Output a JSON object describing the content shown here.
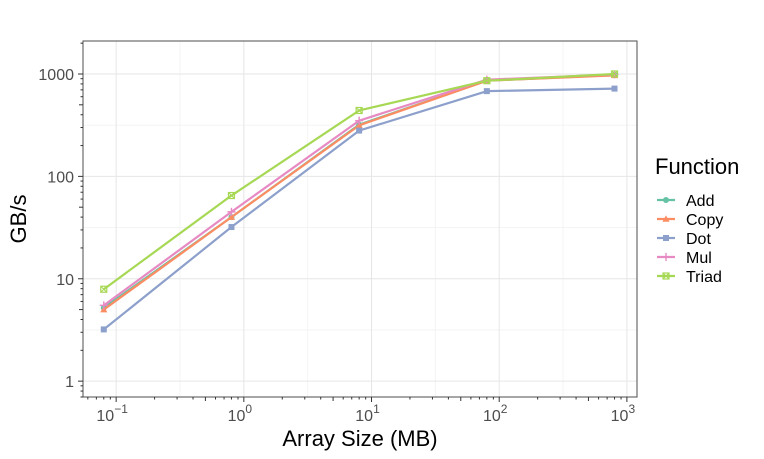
{
  "chart_data": {
    "type": "line",
    "xlabel": "Array Size (MB)",
    "ylabel": "GB/s",
    "x_scale": "log10",
    "y_scale": "log10",
    "xlim": [
      0.055,
      1200
    ],
    "ylim": [
      0.7,
      2100
    ],
    "x_ticks": [
      {
        "value": 0.1,
        "base": "10",
        "exp": "−1"
      },
      {
        "value": 1,
        "base": "10",
        "exp": "0"
      },
      {
        "value": 10,
        "base": "10",
        "exp": "1"
      },
      {
        "value": 100,
        "base": "10",
        "exp": "2"
      },
      {
        "value": 1000,
        "base": "10",
        "exp": "3"
      }
    ],
    "y_ticks": [
      {
        "value": 1,
        "label": "1"
      },
      {
        "value": 10,
        "label": "10"
      },
      {
        "value": 100,
        "label": "100"
      },
      {
        "value": 1000,
        "label": "1000"
      }
    ],
    "grid": true,
    "legend_title": "Function",
    "legend_position": "right",
    "x": [
      0.08,
      0.8,
      8,
      80,
      800
    ],
    "series": [
      {
        "name": "Add",
        "color": "#66c2a5",
        "marker": "circle",
        "values": [
          5.2,
          40,
          320,
          860,
          980
        ]
      },
      {
        "name": "Copy",
        "color": "#fc8d62",
        "marker": "triangle",
        "values": [
          5.0,
          40,
          315,
          860,
          970
        ]
      },
      {
        "name": "Dot",
        "color": "#8da0cb",
        "marker": "square",
        "values": [
          3.2,
          32,
          280,
          680,
          720
        ]
      },
      {
        "name": "Mul",
        "color": "#e78ac3",
        "marker": "plus",
        "values": [
          5.5,
          45,
          350,
          880,
          990
        ]
      },
      {
        "name": "Triad",
        "color": "#a6d854",
        "marker": "boxx",
        "values": [
          7.9,
          65,
          440,
          860,
          1000
        ]
      }
    ]
  }
}
